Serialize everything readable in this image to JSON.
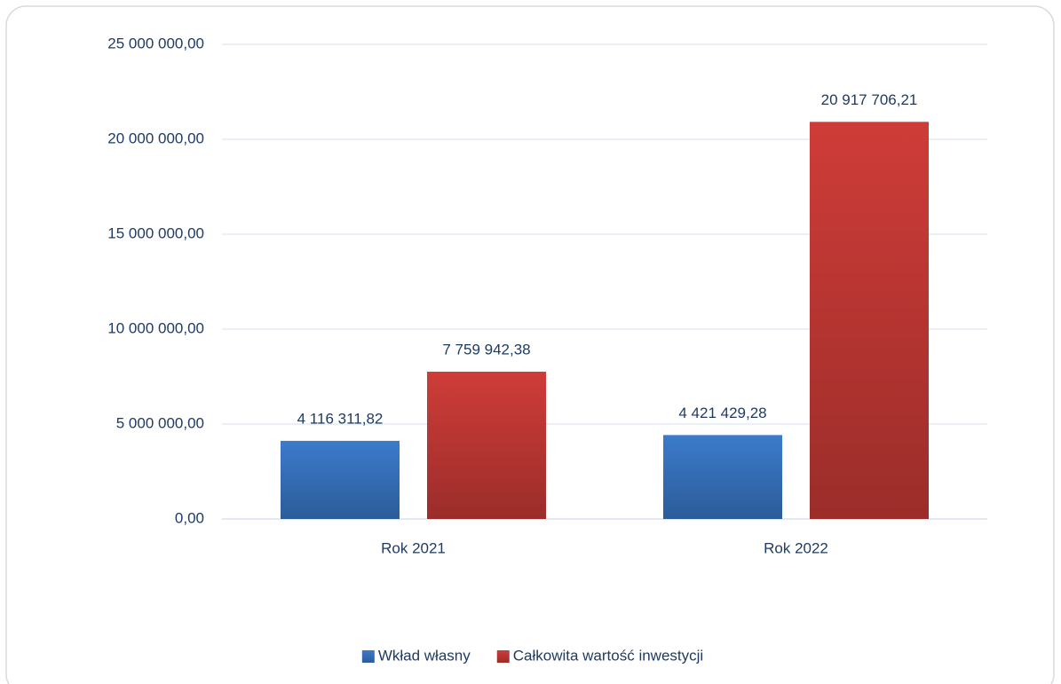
{
  "chart_data": {
    "type": "bar",
    "categories": [
      "Rok 2021",
      "Rok 2022"
    ],
    "series": [
      {
        "name": "Wkład własny",
        "color": "#3b7bcc",
        "values": [
          4116311.82,
          4421429.28
        ],
        "value_labels": [
          "4 116 311,82",
          "4 421 429,28"
        ]
      },
      {
        "name": "Całkowita wartość inwestycji",
        "color": "#cf3c38",
        "values": [
          7759942.38,
          20917706.21
        ],
        "value_labels": [
          "7 759 942,38",
          "20 917 706,21"
        ]
      }
    ],
    "ylim": [
      0,
      25000000
    ],
    "yticks": [
      {
        "value": 0,
        "label": "0,00"
      },
      {
        "value": 5000000,
        "label": "5 000 000,00"
      },
      {
        "value": 10000000,
        "label": "10 000 000,00"
      },
      {
        "value": 15000000,
        "label": "15 000 000,00"
      },
      {
        "value": 20000000,
        "label": "20 000 000,00"
      },
      {
        "value": 25000000,
        "label": "25 000 000,00"
      }
    ],
    "grid": true,
    "legend": "bottom"
  }
}
